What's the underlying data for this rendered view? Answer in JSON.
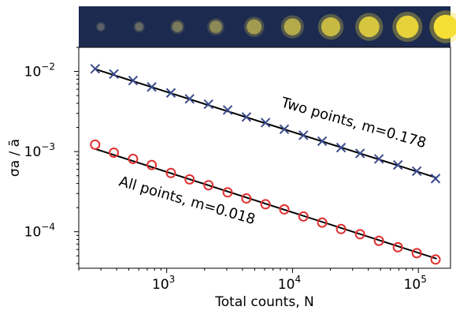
{
  "chart_data": {
    "type": "scatter",
    "xlabel": "Total counts, N",
    "ylabel": "σa / ā",
    "xscale": "log",
    "yscale": "log",
    "xlim": [
      200,
      180000
    ],
    "ylim": [
      3.5e-05,
      0.02
    ],
    "x_ticks": [
      {
        "value": 1000,
        "mantissa": "10",
        "exp": "3"
      },
      {
        "value": 10000,
        "mantissa": "10",
        "exp": "4"
      },
      {
        "value": 100000,
        "mantissa": "10",
        "exp": "5"
      }
    ],
    "y_ticks": [
      {
        "value": 0.01,
        "mantissa": "10",
        "exp": "−2"
      },
      {
        "value": 0.001,
        "mantissa": "10",
        "exp": "−3"
      },
      {
        "value": 0.0001,
        "mantissa": "10",
        "exp": "−4"
      }
    ],
    "grid": false,
    "legend": "none",
    "series": [
      {
        "marker": "x",
        "color": "#3a4a8c",
        "x": [
          270,
          380,
          540,
          760,
          1080,
          1520,
          2150,
          3050,
          4300,
          6100,
          8600,
          12200,
          17200,
          24300,
          34400,
          48600,
          68700,
          97100,
          137000
        ],
        "y": [
          0.0108,
          0.0093,
          0.0077,
          0.0064,
          0.0054,
          0.00455,
          0.0039,
          0.0033,
          0.0027,
          0.0023,
          0.0019,
          0.0016,
          0.00135,
          0.00112,
          0.00095,
          0.00081,
          0.00068,
          0.00057,
          0.00046
        ],
        "fit": {
          "x": [
            270,
            140000
          ],
          "y": [
            0.0107,
            0.00047
          ]
        }
      },
      {
        "marker": "o",
        "color": "#e03030",
        "x": [
          270,
          380,
          540,
          760,
          1080,
          1520,
          2150,
          3050,
          4300,
          6100,
          8600,
          12200,
          17200,
          24300,
          34400,
          48600,
          68700,
          97100,
          137000
        ],
        "y": [
          0.00122,
          0.00097,
          0.00081,
          0.00068,
          0.00054,
          0.00045,
          0.00038,
          0.00031,
          0.00026,
          0.00022,
          0.00019,
          0.000155,
          0.00013,
          0.000108,
          9.3e-05,
          7.7e-05,
          6.4e-05,
          5.4e-05,
          4.5e-05
        ],
        "fit": {
          "x": [
            270,
            140000
          ],
          "y": [
            0.00108,
            4.6e-05
          ]
        }
      }
    ],
    "annotations": [
      {
        "text": "Two points, m=0.178",
        "rotation": 16
      },
      {
        "text": "All points, m=0.018",
        "rotation": 16
      }
    ],
    "inset_strip": {
      "background": "#1c2a4f",
      "spots": [
        {
          "brightness": 0.12
        },
        {
          "brightness": 0.18
        },
        {
          "brightness": 0.28
        },
        {
          "brightness": 0.38
        },
        {
          "brightness": 0.5
        },
        {
          "brightness": 0.6
        },
        {
          "brightness": 0.7
        },
        {
          "brightness": 0.78
        },
        {
          "brightness": 0.86
        },
        {
          "brightness": 0.95
        }
      ]
    }
  }
}
